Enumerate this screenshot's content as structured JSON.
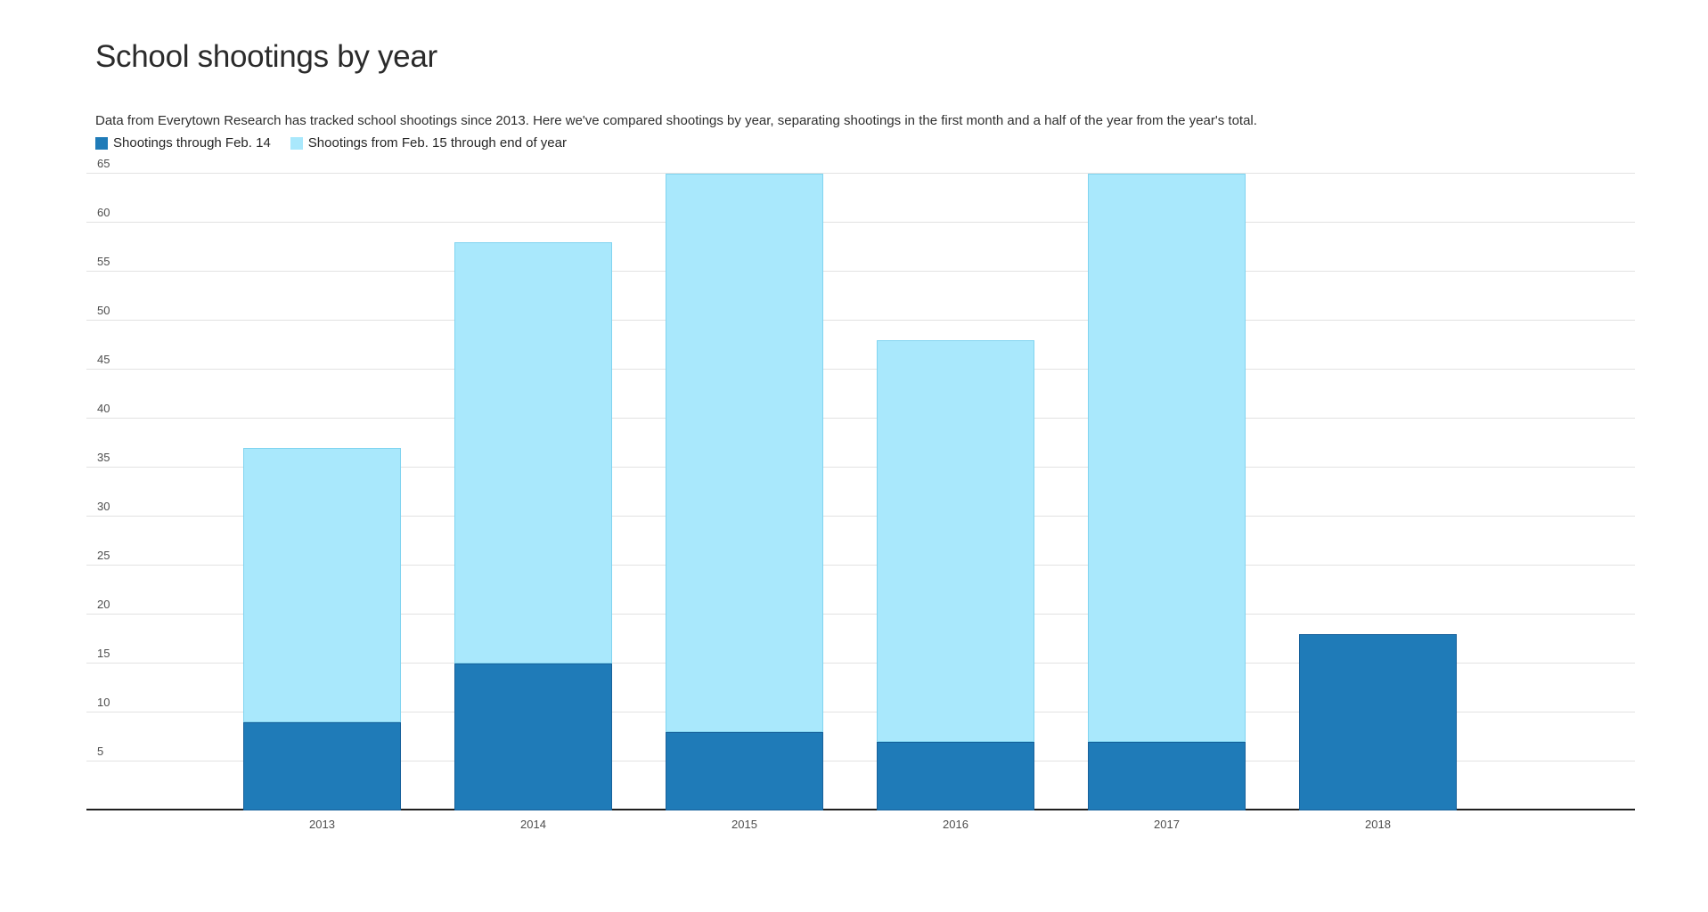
{
  "header": {
    "title": "School shootings by year",
    "subtitle": "Data from Everytown Research has tracked school shootings since 2013. Here we've compared shootings by year, separating shootings in the first month and a half of the year from the year's total."
  },
  "legend": [
    {
      "label": "Shootings through Feb. 14",
      "color": "#1f7bb8"
    },
    {
      "label": "Shootings from Feb. 15 through end of year",
      "color": "#a9e8fc"
    }
  ],
  "colors": {
    "dark_blue": "#1f7bb8",
    "dark_blue_border": "#17619b",
    "light_blue": "#a9e8fc",
    "light_blue_border": "#81d4f0",
    "gridline": "#e2e2e2",
    "axis_line": "#1f1f1f"
  },
  "chart_data": {
    "type": "bar",
    "stacked": true,
    "title": "School shootings by year",
    "xlabel": "",
    "ylabel": "",
    "categories": [
      "2013",
      "2014",
      "2015",
      "2016",
      "2017",
      "2018"
    ],
    "series": [
      {
        "name": "Shootings through Feb. 14",
        "color": "#1f7bb8",
        "border_color": "#17619b",
        "values": [
          9,
          15,
          8,
          7,
          7,
          18
        ]
      },
      {
        "name": "Shootings from Feb. 15 through end of year",
        "color": "#a9e8fc",
        "border_color": "#81d4f0",
        "values": [
          28,
          43,
          57,
          41,
          58,
          0
        ]
      }
    ],
    "totals": [
      37,
      58,
      65,
      48,
      65,
      18
    ],
    "y_ticks": [
      5,
      10,
      15,
      20,
      25,
      30,
      35,
      40,
      45,
      50,
      55,
      60,
      65
    ],
    "ylim": [
      0,
      65
    ],
    "grid": "horizontal",
    "legend_position": "top-left"
  }
}
